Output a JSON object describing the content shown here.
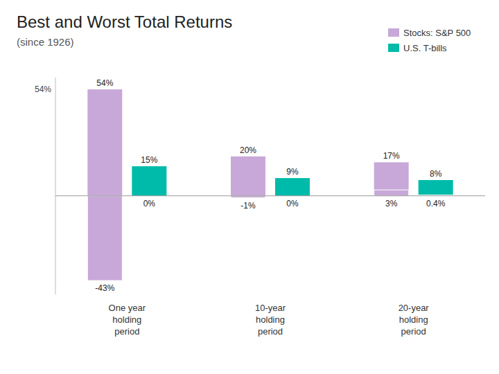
{
  "chart_data": {
    "type": "bar",
    "title": "Best and Worst Total Returns",
    "subtitle": "(since 1926)",
    "categories": [
      "One year\nholding\nperiod",
      "10-year\nholding\nperiod",
      "20-year\nholding\nperiod"
    ],
    "series": [
      {
        "name": "Stocks: S&P 500",
        "color": "#c8a8d8",
        "values": [
          54,
          20,
          17
        ],
        "value_labels": [
          "54%",
          "20%",
          "17%"
        ],
        "worst": [
          -43,
          -1,
          3
        ],
        "worst_labels": [
          "-43%",
          "-1%",
          "3%"
        ]
      },
      {
        "name": "U.S. T-bills",
        "color": "#00bbaa",
        "values": [
          15,
          9,
          8
        ],
        "value_labels": [
          "15%",
          "9%",
          "8%"
        ],
        "worst": [
          0,
          0,
          0.4
        ],
        "worst_labels": [
          "0%",
          "0%",
          "0.4%"
        ]
      }
    ],
    "annotations": [
      {
        "text": "54%",
        "y": 54
      }
    ],
    "ylim": [
      -50,
      60
    ],
    "tick_labels": false,
    "grid": false,
    "data_labels": true,
    "legend": "upper right"
  }
}
